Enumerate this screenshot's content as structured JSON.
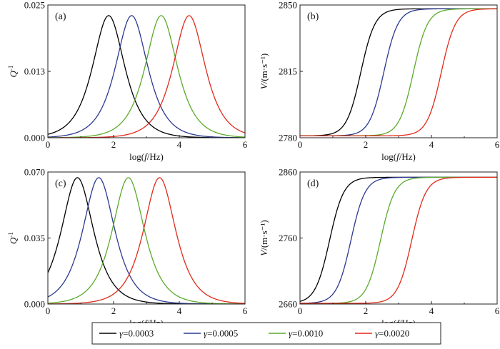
{
  "chart_data": [
    {
      "type": "line",
      "panel_label": "(a)",
      "xlabel_pre": "log(",
      "xlabel_var": "f",
      "xlabel_post": "/Hz)",
      "ylabel_main": "Q",
      "ylabel_sup": "-1",
      "xlim": [
        0,
        6
      ],
      "ylim": [
        0,
        0.025
      ],
      "xticks": [
        "0",
        "2",
        "4",
        "6"
      ],
      "yticks": [
        "0.000",
        "0.013",
        "0.025"
      ],
      "kind": "peak",
      "series": [
        {
          "name": "γ=0.0003",
          "color": "#000000",
          "center": 1.85,
          "peak": 0.023
        },
        {
          "name": "γ=0.0005",
          "color": "#2a3990",
          "center": 2.55,
          "peak": 0.023
        },
        {
          "name": "γ=0.0010",
          "color": "#5aaa2a",
          "center": 3.45,
          "peak": 0.023
        },
        {
          "name": "γ=0.0020",
          "color": "#e02a1a",
          "center": 4.3,
          "peak": 0.023
        }
      ]
    },
    {
      "type": "line",
      "panel_label": "(b)",
      "xlabel_pre": "log(",
      "xlabel_var": "f",
      "xlabel_post": "/Hz)",
      "ylabel_main": "V",
      "ylabel_sup": "/(m·s⁻¹)",
      "xlim": [
        0,
        6
      ],
      "ylim": [
        2780,
        2850
      ],
      "xticks": [
        "0",
        "2",
        "4",
        "6"
      ],
      "yticks": [
        "2780",
        "2815",
        "2850"
      ],
      "kind": "step",
      "low": 2781,
      "high": 2848,
      "series": [
        {
          "name": "γ=0.0003",
          "color": "#000000",
          "center": 1.85
        },
        {
          "name": "γ=0.0005",
          "color": "#2a3990",
          "center": 2.55
        },
        {
          "name": "γ=0.0010",
          "color": "#5aaa2a",
          "center": 3.45
        },
        {
          "name": "γ=0.0020",
          "color": "#e02a1a",
          "center": 4.3
        }
      ]
    },
    {
      "type": "line",
      "panel_label": "(c)",
      "xlabel_pre": "log(",
      "xlabel_var": "f",
      "xlabel_post": "/Hz)",
      "ylabel_main": "Q",
      "ylabel_sup": "-1",
      "xlim": [
        0,
        6
      ],
      "ylim": [
        0,
        0.07
      ],
      "xticks": [
        "0",
        "2",
        "4",
        "6"
      ],
      "yticks": [
        "0.000",
        "0.035",
        "0.070"
      ],
      "kind": "peak",
      "series": [
        {
          "name": "γ=0.0003",
          "color": "#000000",
          "center": 0.9,
          "peak": 0.067
        },
        {
          "name": "γ=0.0005",
          "color": "#2a3990",
          "center": 1.55,
          "peak": 0.067
        },
        {
          "name": "γ=0.0010",
          "color": "#5aaa2a",
          "center": 2.45,
          "peak": 0.067
        },
        {
          "name": "γ=0.0020",
          "color": "#e02a1a",
          "center": 3.4,
          "peak": 0.067
        }
      ]
    },
    {
      "type": "line",
      "panel_label": "(d)",
      "xlabel_pre": "log(",
      "xlabel_var": "f",
      "xlabel_post": "/Hz)",
      "ylabel_main": "V",
      "ylabel_sup": "/(m·s⁻¹)",
      "xlim": [
        0,
        6
      ],
      "ylim": [
        2660,
        2860
      ],
      "xticks": [
        "0",
        "2",
        "4",
        "6"
      ],
      "yticks": [
        "2660",
        "2760",
        "2860"
      ],
      "kind": "step",
      "low": 2661,
      "high": 2852,
      "series": [
        {
          "name": "γ=0.0003",
          "color": "#000000",
          "center": 0.9
        },
        {
          "name": "γ=0.0005",
          "color": "#2a3990",
          "center": 1.55
        },
        {
          "name": "γ=0.0010",
          "color": "#5aaa2a",
          "center": 2.45
        },
        {
          "name": "γ=0.0020",
          "color": "#e02a1a",
          "center": 3.4
        }
      ]
    }
  ],
  "legend": {
    "placement": "bottom-center",
    "entries": [
      {
        "label": "γ=0.0003",
        "color": "#000000"
      },
      {
        "label": "γ=0.0005",
        "color": "#2a3990"
      },
      {
        "label": "γ=0.0010",
        "color": "#5aaa2a"
      },
      {
        "label": "γ=0.0020",
        "color": "#e02a1a"
      }
    ]
  }
}
